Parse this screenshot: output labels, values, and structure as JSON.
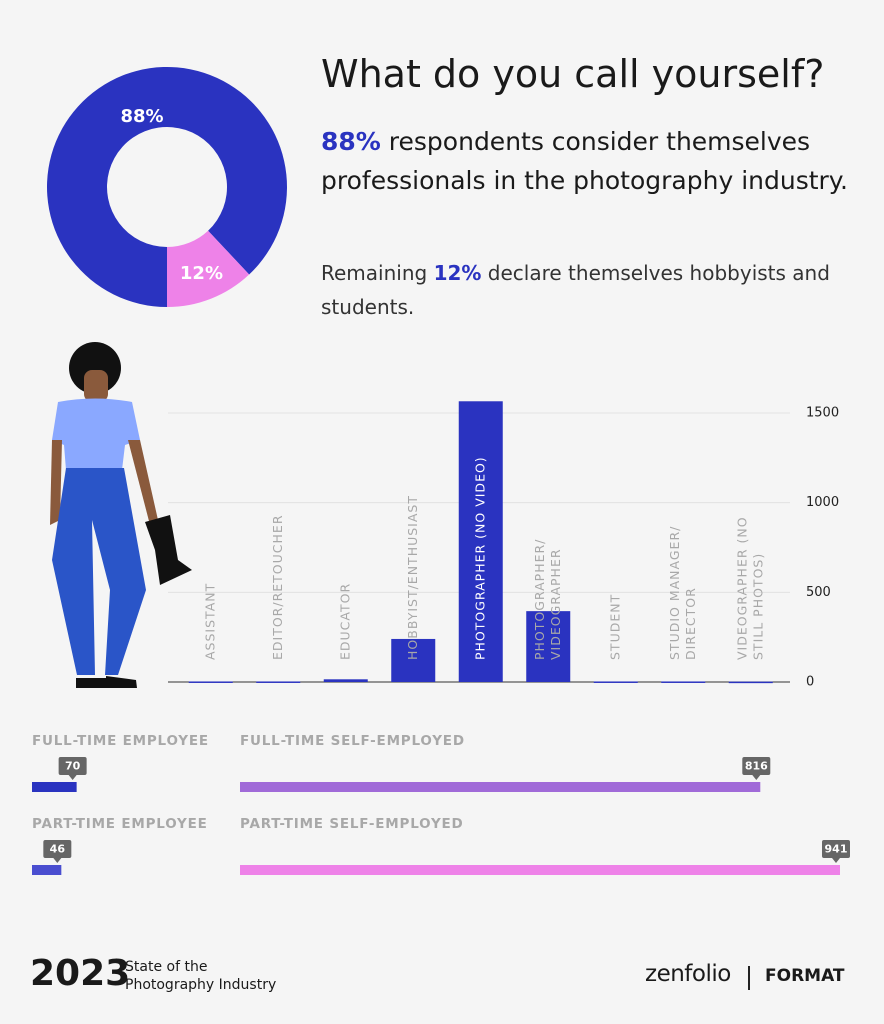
{
  "header": {
    "title": "What do you call yourself?",
    "paragraphs": [
      {
        "highlight": "88%",
        "text": "respondents consider themselves professionals in the photography industry."
      },
      {
        "prefix": "Remaining",
        "highlight": "12%",
        "text": "declare themselves hobbyists and students."
      }
    ]
  },
  "chart_data": [
    {
      "type": "donut",
      "values": [
        88,
        12
      ],
      "value_labels": [
        "88%",
        "12%"
      ],
      "colors": [
        "#2a33c0",
        "#ee82e8"
      ]
    },
    {
      "type": "bar",
      "categories": [
        [
          "ASSISTANT"
        ],
        [
          "EDITOR/RETOUCHER"
        ],
        [
          "EDUCATOR"
        ],
        [
          "HOBBYIST/ENTHUSIAST"
        ],
        [
          "PHOTOGRAPHER (NO VIDEO)"
        ],
        [
          "PHOTOGRAPHER/",
          "VIDEOGRAPHER"
        ],
        [
          "STUDENT"
        ],
        [
          "STUDIO MANAGER/",
          "DIRECTOR"
        ],
        [
          "VIDEOGRAPHER (NO",
          "STILL PHOTOS)"
        ]
      ],
      "values": [
        3,
        3,
        15,
        240,
        1565,
        395,
        3,
        3,
        2
      ],
      "color": "#2a33c0",
      "ylim": [
        0,
        1600
      ],
      "yticks": [
        0,
        500,
        1000,
        1500
      ],
      "grid": true,
      "y_axis_side": "right"
    },
    {
      "type": "hbar",
      "categories": [
        "FULL-TIME EMPLOYEE",
        "FULL-TIME SELF-EMPLOYED",
        "PART-TIME EMPLOYEE",
        "PART-TIME SELF-EMPLOYED"
      ],
      "values": [
        70,
        816,
        46,
        941
      ],
      "colors": [
        "#2a33c0",
        "#a06ad8",
        "#4a4ed0",
        "#ee82e8"
      ]
    }
  ],
  "footer": {
    "year": "2023",
    "subtitle": [
      "State of the",
      "Photography Industry"
    ],
    "brands": [
      "zenfolio",
      "FORMAT"
    ]
  }
}
